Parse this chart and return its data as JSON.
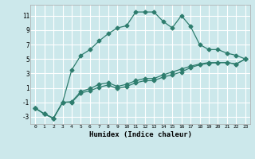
{
  "xlabel": "Humidex (Indice chaleur)",
  "background_color": "#cce8eb",
  "grid_color": "#ffffff",
  "line_color": "#2e7d6e",
  "xlim": [
    -0.5,
    23.5
  ],
  "ylim": [
    -4,
    12.5
  ],
  "xticks": [
    0,
    1,
    2,
    3,
    4,
    5,
    6,
    7,
    8,
    9,
    10,
    11,
    12,
    13,
    14,
    15,
    16,
    17,
    18,
    19,
    20,
    21,
    22,
    23
  ],
  "yticks": [
    -3,
    -1,
    1,
    3,
    5,
    7,
    9,
    11
  ],
  "series1_x": [
    0,
    1,
    2,
    3,
    4,
    5,
    6,
    7,
    8,
    9,
    10,
    11,
    12,
    13,
    14,
    15,
    16,
    17,
    18,
    19,
    20,
    21,
    22,
    23
  ],
  "series1_y": [
    -1.8,
    -2.6,
    -3.2,
    -1.0,
    -0.9,
    0.5,
    0.9,
    1.5,
    1.7,
    1.2,
    1.5,
    2.0,
    2.3,
    2.3,
    2.8,
    3.2,
    3.6,
    4.0,
    4.3,
    4.5,
    4.5,
    4.5,
    4.3,
    5.0
  ],
  "series2_x": [
    0,
    1,
    2,
    3,
    4,
    5,
    6,
    7,
    8,
    9,
    10,
    11,
    12,
    13,
    14,
    15,
    16,
    17,
    18,
    19,
    20,
    21,
    22,
    23
  ],
  "series2_y": [
    -1.8,
    -2.6,
    -3.2,
    -1.0,
    -1.0,
    0.3,
    0.6,
    1.1,
    1.4,
    0.9,
    1.2,
    1.7,
    2.0,
    2.0,
    2.5,
    2.8,
    3.2,
    3.8,
    4.2,
    4.4,
    4.5,
    4.5,
    4.3,
    5.0
  ],
  "series3_x": [
    0,
    1,
    2,
    3,
    4,
    5,
    6,
    7,
    8,
    9,
    10,
    11,
    12,
    13,
    14,
    15,
    16,
    17,
    18,
    19,
    20,
    21,
    22,
    23
  ],
  "series3_y": [
    -1.8,
    -2.6,
    -3.2,
    -1.0,
    3.5,
    5.5,
    6.3,
    7.5,
    8.5,
    9.3,
    9.6,
    11.5,
    11.5,
    11.5,
    10.2,
    9.3,
    11.0,
    9.5,
    7.0,
    6.3,
    6.3,
    5.8,
    5.5,
    5.0
  ]
}
